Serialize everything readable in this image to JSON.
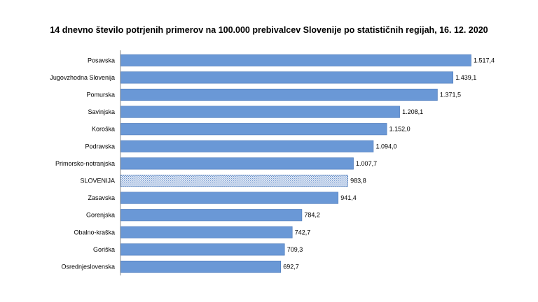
{
  "chart_data": {
    "type": "bar",
    "orientation": "horizontal",
    "title": "14 dnevno število potrjenih primerov na 100.000 prebivalcev Slovenije po statističnih regijah, 16. 12. 2020",
    "categories": [
      "Posavska",
      "Jugovzhodna Slovenija",
      "Pomurska",
      "Savinjska",
      "Koroška",
      "Podravska",
      "Primorsko-notranjska",
      "SLOVENIJA",
      "Zasavska",
      "Gorenjska",
      "Obalno-kraška",
      "Goriška",
      "Osrednjeslovenska"
    ],
    "values": [
      1517.4,
      1439.1,
      1371.5,
      1208.1,
      1152.0,
      1094.0,
      1007.7,
      983.8,
      941.4,
      784.2,
      742.7,
      709.3,
      692.7
    ],
    "value_labels": [
      "1.517,4",
      "1.439,1",
      "1.371,5",
      "1.208,1",
      "1.152,0",
      "1.094,0",
      "1.007,7",
      "983,8",
      "941,4",
      "784,2",
      "742,7",
      "709,3",
      "692,7"
    ],
    "highlight": "SLOVENIJA",
    "colors": {
      "bar": "#6a98d6",
      "bar_edge": "#4a78b8",
      "highlight_stipple": "#5b87c8",
      "axis": "#888888"
    },
    "grid": false,
    "legend": "none"
  }
}
